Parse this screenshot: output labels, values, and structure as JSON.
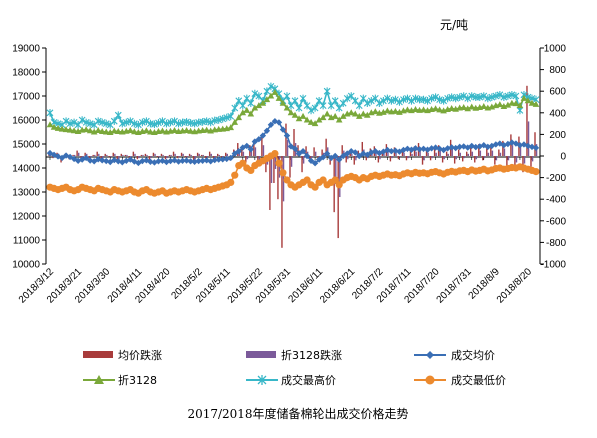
{
  "chart_data": {
    "type": "line",
    "title": "2017/2018年度储备棉轮出成交价格走势",
    "unit": "元/吨",
    "y_left": {
      "min": 10000,
      "max": 19000,
      "ticks": [
        10000,
        11000,
        12000,
        13000,
        14000,
        15000,
        16000,
        17000,
        18000,
        19000
      ]
    },
    "y_right": {
      "min": -1000,
      "max": 1000,
      "ticks": [
        -1000,
        -800,
        -600,
        -400,
        -200,
        0,
        200,
        400,
        600,
        800,
        1000
      ]
    },
    "x_tick_labels": [
      "2018/3/12",
      "2018/3/21",
      "2018/3/30",
      "2018/4/11",
      "2018/4/20",
      "2018/5/2",
      "2018/5/11",
      "2018/5/22",
      "2018/5/31",
      "2018/6/11",
      "2018/6/21",
      "2018/7/2",
      "2018/7/11",
      "2018/7/20",
      "2018/7/31",
      "2018/8/9",
      "2018/8/20"
    ],
    "x_tick_positions": [
      0,
      7,
      14,
      22,
      29,
      37,
      44,
      52,
      59,
      67,
      75,
      82,
      89,
      96,
      104,
      111,
      119
    ],
    "grid": false,
    "legend_position": "bottom",
    "series": [
      {
        "name": "均价跌涨",
        "kind": "bar",
        "axis": "right",
        "color": "#a83b3b",
        "values": [
          40,
          -20,
          30,
          -60,
          20,
          -30,
          10,
          50,
          -40,
          30,
          -20,
          10,
          40,
          -30,
          20,
          -10,
          30,
          -50,
          20,
          10,
          -20,
          40,
          -30,
          10,
          20,
          -40,
          30,
          -10,
          20,
          -30,
          10,
          40,
          -20,
          30,
          -10,
          20,
          -50,
          30,
          10,
          -20,
          40,
          -30,
          20,
          -10,
          30,
          -40,
          60,
          120,
          80,
          -60,
          100,
          150,
          -90,
          200,
          -150,
          -500,
          -250,
          -400,
          -850,
          300,
          -200,
          250,
          100,
          -150,
          90,
          -50,
          80,
          -40,
          60,
          160,
          -80,
          -520,
          -760,
          100,
          -60,
          40,
          -80,
          50,
          130,
          -40,
          70,
          90,
          -60,
          40,
          110,
          -50,
          80,
          -30,
          60,
          -40,
          50,
          90,
          120,
          -80,
          60,
          -40,
          70,
          100,
          -60,
          40,
          150,
          -70,
          60,
          -50,
          40,
          90,
          -60,
          110,
          -40,
          70,
          100,
          -80,
          60,
          140,
          -90,
          200,
          -120,
          180,
          -150,
          650,
          -100,
          220
        ]
      },
      {
        "name": "折3128跌涨",
        "kind": "bar",
        "axis": "right",
        "color": "#7b5a9a",
        "values": [
          20,
          -10,
          20,
          -30,
          10,
          -20,
          10,
          30,
          -20,
          20,
          -10,
          10,
          20,
          -20,
          10,
          -10,
          20,
          -30,
          10,
          10,
          -10,
          20,
          -20,
          10,
          10,
          -20,
          20,
          -10,
          10,
          -20,
          10,
          20,
          -10,
          20,
          -10,
          10,
          -30,
          20,
          10,
          -10,
          20,
          -20,
          10,
          -10,
          20,
          -20,
          30,
          60,
          40,
          -30,
          50,
          80,
          -50,
          100,
          -80,
          -250,
          -120,
          -200,
          -420,
          150,
          -100,
          120,
          50,
          -70,
          40,
          -20,
          40,
          -20,
          30,
          80,
          -40,
          -260,
          -380,
          50,
          -30,
          20,
          -40,
          20,
          60,
          -20,
          30,
          40,
          -30,
          20,
          50,
          -20,
          40,
          -10,
          30,
          -20,
          20,
          40,
          60,
          -40,
          30,
          -20,
          30,
          50,
          -30,
          20,
          70,
          -30,
          30,
          -20,
          20,
          40,
          -30,
          50,
          -20,
          30,
          50,
          -40,
          30,
          70,
          -40,
          100,
          -60,
          90,
          -70,
          320,
          -50,
          110
        ]
      },
      {
        "name": "成交均价",
        "kind": "line",
        "axis": "left",
        "color": "#3a6fb5",
        "marker": "diamond",
        "values": [
          14620,
          14550,
          14480,
          14420,
          14520,
          14460,
          14380,
          14300,
          14350,
          14420,
          14310,
          14280,
          14360,
          14320,
          14290,
          14250,
          14330,
          14280,
          14240,
          14300,
          14350,
          14270,
          14210,
          14290,
          14320,
          14260,
          14230,
          14280,
          14300,
          14250,
          14290,
          14320,
          14270,
          14300,
          14310,
          14280,
          14260,
          14290,
          14300,
          14320,
          14280,
          14330,
          14350,
          14360,
          14380,
          14420,
          14600,
          14700,
          14850,
          14920,
          14780,
          15100,
          15200,
          15350,
          15550,
          15800,
          15950,
          15900,
          15600,
          15350,
          14900,
          14800,
          14600,
          14700,
          14500,
          14300,
          14200,
          14350,
          14450,
          14600,
          14420,
          14500,
          14350,
          14500,
          14600,
          14700,
          14650,
          14500,
          14600,
          14550,
          14650,
          14700,
          14620,
          14680,
          14750,
          14700,
          14720,
          14680,
          14750,
          14800,
          14760,
          14820,
          14780,
          14800,
          14760,
          14820,
          14850,
          14800,
          14750,
          14820,
          14860,
          14830,
          14880,
          14900,
          14850,
          14920,
          14870,
          14900,
          14950,
          14880,
          14920,
          14980,
          15020,
          14950,
          15000,
          15060,
          15020,
          14950,
          14980,
          14920,
          14880,
          14840
        ]
      },
      {
        "name": "折3128",
        "kind": "line",
        "axis": "left",
        "color": "#7aa83a",
        "marker": "triangle",
        "values": [
          15800,
          15700,
          15650,
          15620,
          15600,
          15580,
          15550,
          15520,
          15580,
          15600,
          15550,
          15500,
          15560,
          15520,
          15500,
          15480,
          15540,
          15520,
          15500,
          15530,
          15560,
          15510,
          15480,
          15520,
          15550,
          15500,
          15480,
          15520,
          15540,
          15500,
          15530,
          15560,
          15520,
          15540,
          15560,
          15530,
          15510,
          15540,
          15560,
          15580,
          15540,
          15590,
          15610,
          15620,
          15640,
          15680,
          15900,
          16100,
          16300,
          16400,
          16250,
          16500,
          16600,
          16700,
          16850,
          17000,
          17150,
          16900,
          16700,
          16500,
          16300,
          16200,
          16050,
          16150,
          16000,
          15900,
          15850,
          16000,
          16100,
          16250,
          16100,
          16150,
          16000,
          16150,
          16250,
          16300,
          16250,
          16150,
          16250,
          16200,
          16300,
          16350,
          16280,
          16320,
          16380,
          16340,
          16360,
          16320,
          16380,
          16420,
          16390,
          16440,
          16400,
          16420,
          16390,
          16440,
          16470,
          16420,
          16380,
          16440,
          16480,
          16450,
          16500,
          16520,
          16470,
          16540,
          16490,
          16520,
          16560,
          16500,
          16540,
          16600,
          16640,
          16560,
          16620,
          16700,
          16680,
          16600,
          16900,
          16800,
          16700,
          16650
        ]
      },
      {
        "name": "成交最高价",
        "kind": "line",
        "axis": "left",
        "color": "#38b7c8",
        "marker": "star",
        "values": [
          16300,
          15900,
          15850,
          15800,
          15950,
          15850,
          15900,
          15800,
          16000,
          15900,
          15850,
          15800,
          15950,
          15900,
          15850,
          15800,
          15950,
          16200,
          15850,
          15900,
          15950,
          15850,
          15800,
          15900,
          15950,
          15850,
          15820,
          15880,
          15950,
          15850,
          15900,
          15950,
          15850,
          15900,
          15920,
          15880,
          15850,
          15900,
          15920,
          15950,
          15900,
          15980,
          16000,
          16050,
          16100,
          16150,
          16500,
          16800,
          16600,
          16900,
          16700,
          17100,
          17000,
          16800,
          17200,
          17400,
          17300,
          17100,
          16800,
          17000,
          16600,
          16800,
          16500,
          16900,
          16600,
          16400,
          16500,
          16800,
          16600,
          17200,
          16600,
          16800,
          16500,
          16700,
          16900,
          17000,
          16800,
          16600,
          16900,
          16700,
          16800,
          16900,
          16700,
          16800,
          16900,
          16800,
          16850,
          16750,
          16850,
          16900,
          16800,
          16900,
          16850,
          16850,
          16800,
          16900,
          16950,
          16850,
          16800,
          16900,
          16950,
          16900,
          16950,
          17000,
          16900,
          17000,
          16950,
          16950,
          17000,
          16900,
          16950,
          17000,
          17050,
          16950,
          17000,
          17050,
          17000,
          16400,
          17050,
          16950,
          16900,
          16850
        ]
      },
      {
        "name": "成交最低价",
        "kind": "line",
        "axis": "left",
        "color": "#ec8a2e",
        "marker": "circle",
        "values": [
          13200,
          13150,
          13100,
          13150,
          13200,
          13100,
          13050,
          13100,
          13200,
          13150,
          13100,
          13050,
          13150,
          13100,
          13050,
          13000,
          13100,
          13050,
          13000,
          13050,
          13100,
          13000,
          12950,
          13050,
          13100,
          13000,
          12950,
          13000,
          13050,
          12950,
          13000,
          13050,
          13000,
          13050,
          13100,
          13050,
          13000,
          13050,
          13100,
          13150,
          13100,
          13150,
          13200,
          13250,
          13300,
          13400,
          13700,
          14100,
          14200,
          14000,
          13900,
          14100,
          14200,
          14300,
          14400,
          14500,
          14600,
          14200,
          13800,
          13500,
          13300,
          13200,
          13300,
          13400,
          13500,
          13300,
          13200,
          13400,
          13500,
          13300,
          13400,
          13500,
          13300,
          13500,
          13600,
          13650,
          13600,
          13500,
          13600,
          13550,
          13650,
          13700,
          13650,
          13700,
          13750,
          13700,
          13720,
          13680,
          13750,
          13800,
          13760,
          13820,
          13780,
          13800,
          13760,
          13820,
          13850,
          13800,
          13750,
          13820,
          13860,
          13830,
          13880,
          13900,
          13850,
          13920,
          13870,
          13900,
          13950,
          13880,
          13920,
          13980,
          14000,
          13950,
          13980,
          14020,
          14000,
          14050,
          14000,
          13950,
          13900,
          13850
        ]
      }
    ]
  }
}
